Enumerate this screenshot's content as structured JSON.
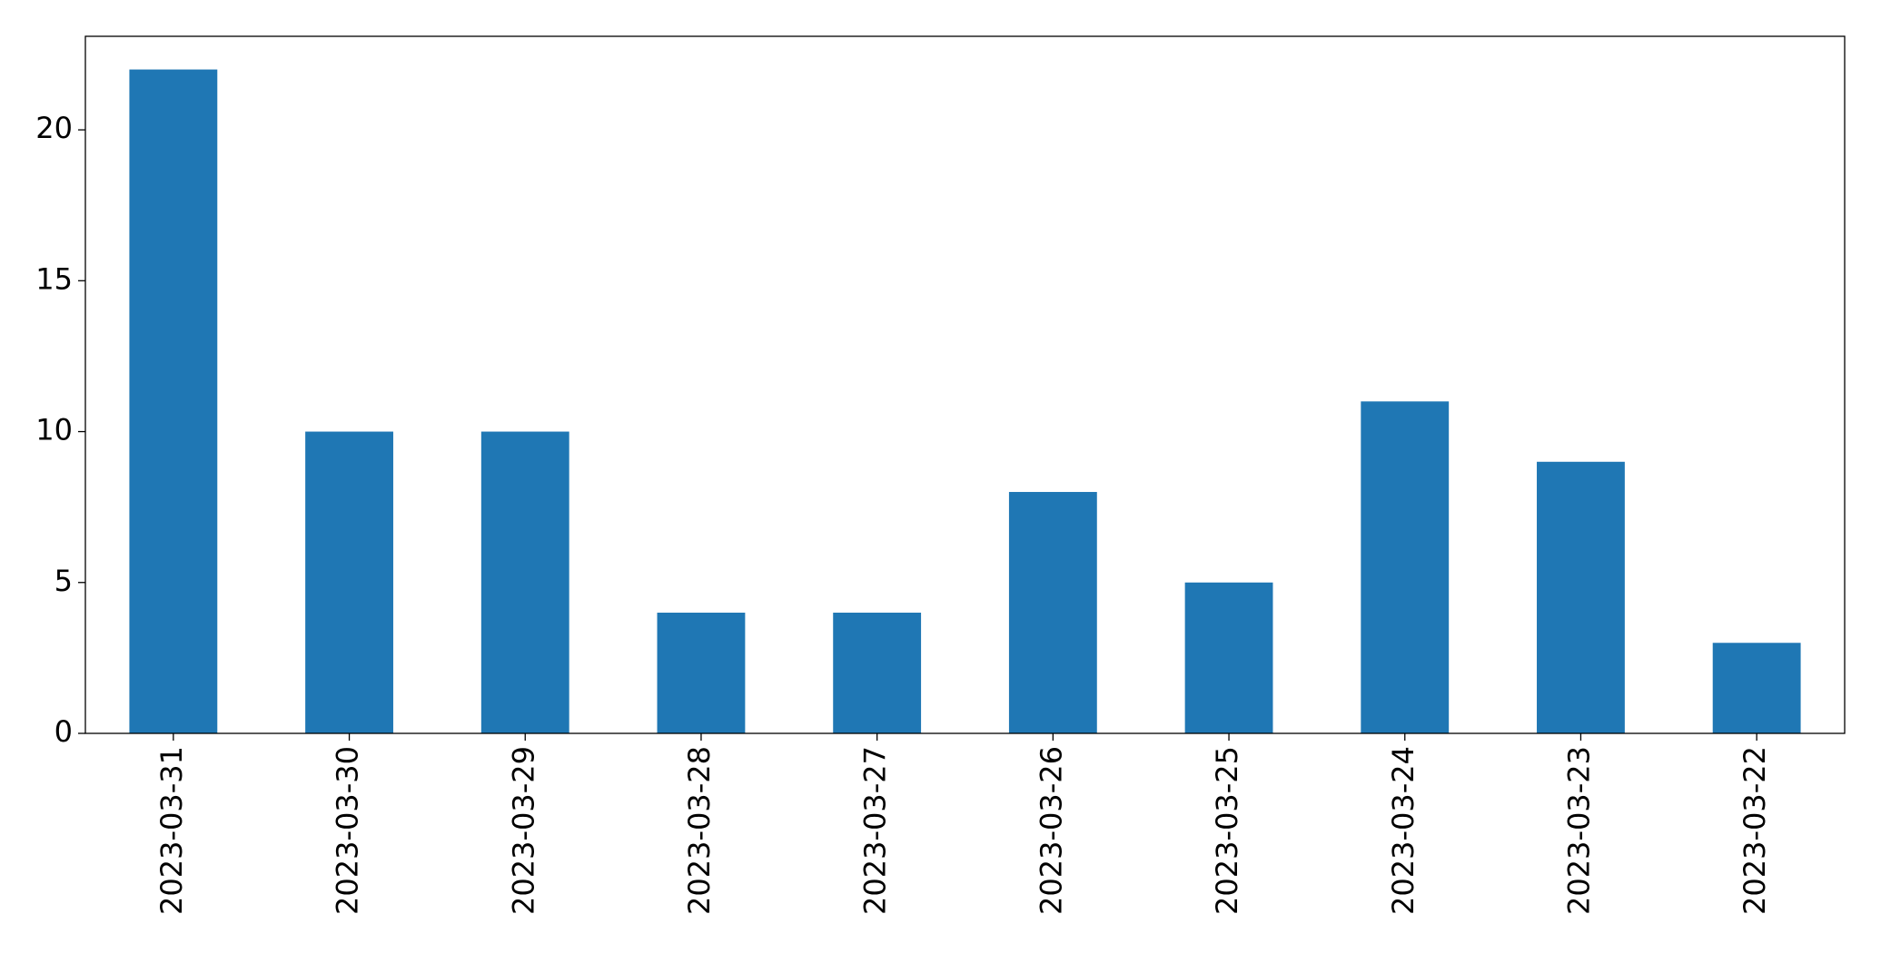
{
  "chart_data": {
    "type": "bar",
    "categories": [
      "2023-03-31",
      "2023-03-30",
      "2023-03-29",
      "2023-03-28",
      "2023-03-27",
      "2023-03-26",
      "2023-03-25",
      "2023-03-24",
      "2023-03-23",
      "2023-03-22"
    ],
    "values": [
      22,
      10,
      10,
      4,
      4,
      8,
      5,
      11,
      9,
      3
    ],
    "color": "#1f77b4",
    "ylim": [
      0,
      23.1
    ],
    "yticks": [
      0,
      5,
      10,
      15,
      20
    ],
    "grid": false
  }
}
